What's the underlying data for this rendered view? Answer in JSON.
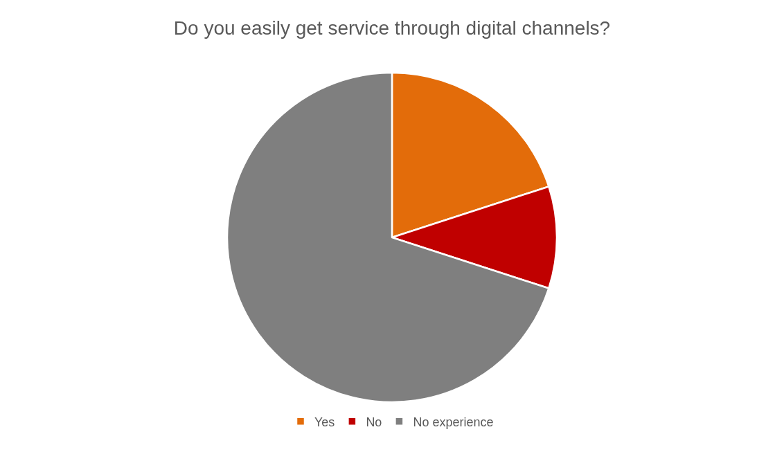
{
  "chart_data": {
    "type": "pie",
    "title": "Do you easily get service through digital channels?",
    "categories": [
      "Yes",
      "No",
      "No experience"
    ],
    "values": [
      20,
      10,
      70
    ],
    "colors": [
      "#e36c0a",
      "#c00000",
      "#7f7f7f"
    ],
    "legend": "bottom"
  }
}
